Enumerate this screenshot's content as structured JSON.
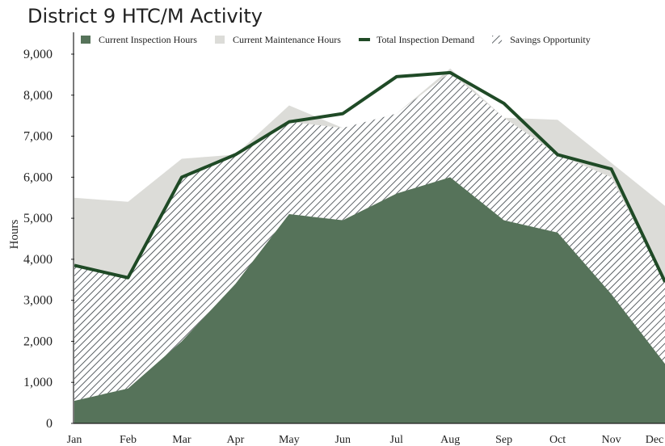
{
  "chart_data": {
    "type": "area",
    "title": "District 9 HTC/M Activity",
    "y_label": "Hours",
    "categories": [
      "Jan",
      "Feb",
      "Mar",
      "Apr",
      "May",
      "Jun",
      "Jul",
      "Aug",
      "Sep",
      "Oct",
      "Nov",
      "Dec"
    ],
    "series": [
      {
        "name": "Current Inspection Hours",
        "kind": "area",
        "color": "#56735a",
        "values": [
          550,
          850,
          2000,
          3400,
          5100,
          4950,
          5600,
          6000,
          4950,
          4650,
          3150,
          1450
        ]
      },
      {
        "name": "Current Maintenance Hours",
        "kind": "area",
        "color": "#dcdcd8",
        "values": [
          5500,
          5400,
          6450,
          6550,
          7750,
          7200,
          7550,
          8650,
          7450,
          7400,
          6350,
          5300
        ]
      },
      {
        "name": "Total Inspection Demand",
        "kind": "line",
        "color": "#1f4a26",
        "values": [
          3850,
          3550,
          6000,
          6550,
          7350,
          7550,
          8450,
          8550,
          7800,
          6550,
          6200,
          3450
        ]
      },
      {
        "name": "Savings Opportunity",
        "kind": "hatch",
        "color": "#333a40",
        "stack_on": 0,
        "values": [
          3300,
          2700,
          4000,
          3150,
          2250,
          2250,
          1950,
          2550,
          2500,
          1900,
          2850,
          2000
        ]
      }
    ],
    "ylim": [
      0,
      9000
    ],
    "yticks": [
      0,
      {
        "value": 1000,
        "label": "1,000"
      },
      {
        "value": 2000,
        "label": "2,000"
      },
      {
        "value": 3000,
        "label": "3,000"
      },
      {
        "value": 4000,
        "label": "4,000"
      },
      {
        "value": 5000,
        "label": "5,000"
      },
      {
        "value": 6000,
        "label": "6,000"
      },
      {
        "value": 7000,
        "label": "7,000"
      },
      {
        "value": 8000,
        "label": "8,000"
      },
      {
        "value": 9000,
        "label": "9,000"
      }
    ]
  }
}
